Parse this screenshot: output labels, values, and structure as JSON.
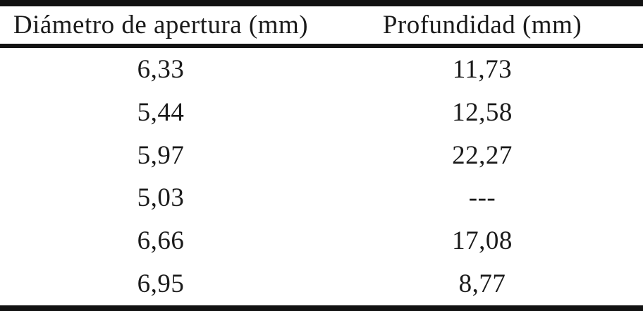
{
  "table": {
    "columns": [
      {
        "label": "Diámetro de apertura (mm)"
      },
      {
        "label": "Profundidad (mm)"
      }
    ],
    "rows": [
      [
        "6,33",
        "11,73"
      ],
      [
        "5,44",
        "12,58"
      ],
      [
        "5,97",
        "22,27"
      ],
      [
        "5,03",
        "---"
      ],
      [
        "6,66",
        "17,08"
      ],
      [
        "6,95",
        "8,77"
      ]
    ]
  },
  "colors": {
    "text": "#1a1a1a",
    "rule": "#121212",
    "background": "#ffffff"
  }
}
